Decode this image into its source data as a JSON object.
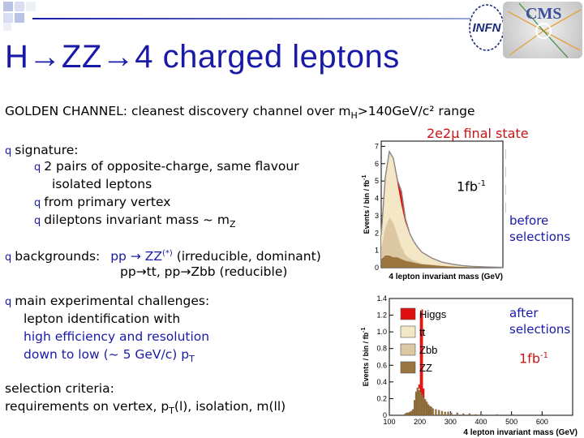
{
  "slide": {
    "title": "H→ZZ→4 charged leptons",
    "golden": {
      "lead": "GOLDEN CHANNEL: cleanest discovery channel over m",
      "sub": "H",
      "tail": ">140GeV/c² range"
    },
    "bullet_glyph": "q",
    "signature": "signature:",
    "sub_bullets": [
      "2 pairs of opposite-charge, same flavour",
      "isolated leptons",
      "from primary vertex",
      "dileptons invariant mass ~ m"
    ],
    "mz_sub": "Z",
    "backgrounds": {
      "label": "backgrounds:",
      "line1_a": "pp → ZZ",
      "line1_sup": "(*)",
      "line1_b": " (irreducible, dominant)",
      "line2": "pp→tt, pp→Zbb (reducible)"
    },
    "challenges": {
      "head": "main experimental challenges:",
      "l1": "lepton identification with",
      "l2": "high efficiency and resolution",
      "l3_a": "down to low (~ 5 GeV/c) p",
      "l3_sub": "T"
    },
    "selection": {
      "head": "selection criteria:",
      "line_a": "requirements on vertex, p",
      "line_sub": "T",
      "line_b": "(l), isolation, m(ll)"
    },
    "annotations": {
      "final_state": "2e2μ final state",
      "lumi_base": "1fb",
      "lumi_exp": "-1",
      "before_1": "before",
      "before_2": "selections",
      "after_1": "after",
      "after_2": "selections"
    },
    "logos": {
      "infn": "INFN",
      "cms": "CMS"
    }
  },
  "chart_data": [
    {
      "type": "area",
      "stacked": true,
      "title": "",
      "xlabel": "4 lepton invariant mass (GeV)",
      "ylabel": "Events / bin / fb",
      "ylabel_exp": "-1",
      "xlim": [
        100,
        700
      ],
      "ylim": [
        0,
        7.3
      ],
      "yticks": [
        0,
        1,
        2,
        3,
        4,
        5,
        6,
        7
      ],
      "legend_position": "top-right",
      "colors": {
        "Higgs": "#e01010",
        "tt": "#f4e7c6",
        "Zbb": "#dcc8a3",
        "ZZ": "#9a7540",
        "line": "#8a8a8a"
      },
      "x": [
        100,
        120,
        140,
        160,
        180,
        200,
        220,
        240,
        260,
        280,
        300,
        350,
        400,
        450,
        500,
        550,
        600,
        650,
        700
      ],
      "series": [
        {
          "name": "ZZ",
          "values": [
            0.5,
            0.7,
            0.7,
            0.6,
            0.6,
            0.5,
            0.4,
            0.35,
            0.3,
            0.25,
            0.2,
            0.15,
            0.1,
            0.07,
            0.05,
            0.03,
            0.02,
            0.01,
            0.01
          ]
        },
        {
          "name": "Zbb",
          "values": [
            0.6,
            1.6,
            2.2,
            2.0,
            1.3,
            0.7,
            0.35,
            0.2,
            0.12,
            0.08,
            0.05,
            0.03,
            0.02,
            0.01,
            0.0,
            0.0,
            0.0,
            0.0,
            0.0
          ]
        },
        {
          "name": "tt",
          "values": [
            0.8,
            2.9,
            3.8,
            3.7,
            3.1,
            2.5,
            1.9,
            1.45,
            1.1,
            0.85,
            0.65,
            0.37,
            0.2,
            0.12,
            0.07,
            0.04,
            0.03,
            0.02,
            0.01
          ]
        },
        {
          "name": "Higgs",
          "values": [
            0.0,
            0.0,
            0.0,
            0.0,
            0.05,
            0.7,
            0.15,
            0.0,
            0.0,
            0.0,
            0.0,
            0.0,
            0.0,
            0.0,
            0.0,
            0.0,
            0.0,
            0.0,
            0.0
          ]
        }
      ]
    },
    {
      "type": "bar",
      "stacked": true,
      "title": "",
      "xlabel": "4 lepton invariant mass (GeV)",
      "ylabel": "Events / bin / fb",
      "ylabel_exp": "-1",
      "xlim": [
        100,
        700
      ],
      "ylim": [
        0,
        1.4
      ],
      "yticks": [
        0,
        0.2,
        0.4,
        0.6,
        0.8,
        1.0,
        1.2,
        1.4
      ],
      "xticks": [
        100,
        200,
        300,
        400,
        500,
        600
      ],
      "legend_position": "top-left",
      "colors": {
        "Higgs": "#e01010",
        "tt": "#f4e7c6",
        "Zbb": "#dcc8a3",
        "ZZ": "#9a7540"
      },
      "bin_width": 5,
      "x": [
        150,
        155,
        160,
        165,
        170,
        175,
        180,
        185,
        190,
        195,
        200,
        205,
        210,
        215,
        220,
        225,
        230,
        235,
        240,
        250,
        260,
        270,
        280,
        290,
        300,
        320,
        340,
        360,
        380,
        400,
        450,
        500,
        550,
        600,
        650
      ],
      "series": [
        {
          "name": "ZZ",
          "values": [
            0.02,
            0.03,
            0.03,
            0.04,
            0.05,
            0.07,
            0.18,
            0.28,
            0.33,
            0.3,
            0.28,
            0.25,
            0.22,
            0.19,
            0.16,
            0.13,
            0.11,
            0.1,
            0.08,
            0.07,
            0.06,
            0.05,
            0.04,
            0.04,
            0.03,
            0.03,
            0.02,
            0.02,
            0.01,
            0.01,
            0.01,
            0.01,
            0.0,
            0.0,
            0.0
          ]
        },
        {
          "name": "Zbb",
          "values": [
            0.0,
            0.0,
            0.0,
            0.0,
            0.0,
            0.0,
            0.0,
            0.01,
            0.0,
            0.01,
            0.0,
            0.0,
            0.0,
            0.0,
            0.0,
            0.0,
            0.0,
            0.0,
            0.0,
            0.0,
            0.0,
            0.0,
            0.0,
            0.0,
            0.0,
            0.0,
            0.0,
            0.0,
            0.0,
            0.0,
            0.0,
            0.0,
            0.0,
            0.0,
            0.0
          ]
        },
        {
          "name": "tt",
          "values": [
            0.0,
            0.0,
            0.0,
            0.0,
            0.0,
            0.0,
            0.0,
            0.0,
            0.0,
            0.01,
            0.0,
            0.0,
            0.0,
            0.0,
            0.0,
            0.0,
            0.0,
            0.0,
            0.0,
            0.0,
            0.0,
            0.0,
            0.0,
            0.0,
            0.0,
            0.0,
            0.0,
            0.0,
            0.0,
            0.0,
            0.0,
            0.0,
            0.0,
            0.0,
            0.0
          ]
        },
        {
          "name": "Higgs",
          "values": [
            0.0,
            0.0,
            0.0,
            0.0,
            0.0,
            0.0,
            0.0,
            0.0,
            0.0,
            0.05,
            0.95,
            1.02,
            0.1,
            0.0,
            0.0,
            0.0,
            0.0,
            0.0,
            0.0,
            0.0,
            0.0,
            0.0,
            0.0,
            0.0,
            0.0,
            0.0,
            0.0,
            0.0,
            0.0,
            0.0,
            0.0,
            0.0,
            0.0,
            0.0,
            0.0
          ]
        }
      ]
    }
  ]
}
